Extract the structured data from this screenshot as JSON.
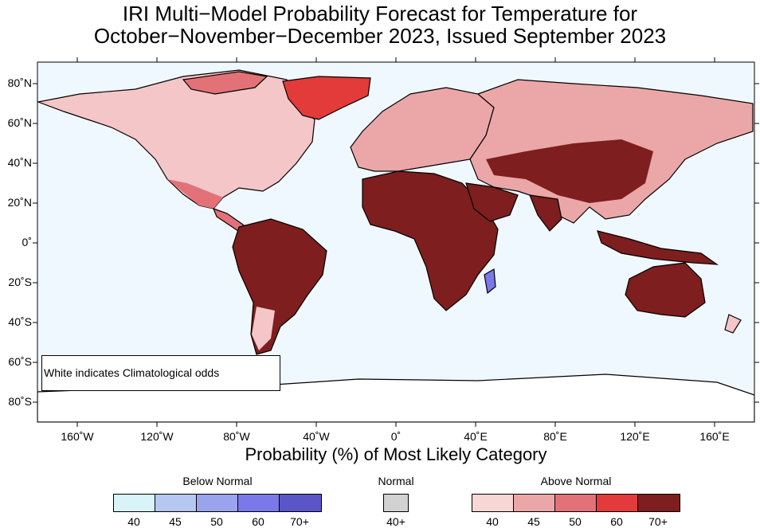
{
  "title_line1": "IRI Multi−Model Probability Forecast for Temperature for",
  "title_line2": "October−November−December 2023, Issued September 2023",
  "note": "White indicates Climatological odds",
  "legend_title": "Probability (%) of Most Likely Category",
  "x_axis_labels": [
    "160˚W",
    "120˚W",
    "80˚W",
    "40˚W",
    "0˚",
    "40˚E",
    "80˚E",
    "120˚E",
    "160˚E"
  ],
  "y_axis_labels": [
    "80˚N",
    "60˚N",
    "40˚N",
    "20˚N",
    "0˚",
    "20˚S",
    "40˚S",
    "60˚S",
    "80˚S"
  ],
  "legend": {
    "below": {
      "label": "Below Normal",
      "ticks": [
        "40",
        "45",
        "50",
        "60",
        "70+"
      ],
      "colors": [
        "#d8f4fa",
        "#b6c8f2",
        "#9aa4ec",
        "#7b78ea",
        "#5a56c8"
      ]
    },
    "normal": {
      "label": "Normal",
      "ticks": [
        "40+"
      ],
      "colors": [
        "#d2d2d2"
      ]
    },
    "above": {
      "label": "Above Normal",
      "ticks": [
        "40",
        "45",
        "50",
        "60",
        "70+"
      ],
      "colors": [
        "#f9d6d6",
        "#eba7a8",
        "#e27278",
        "#e33a3a",
        "#7e1e1e"
      ]
    }
  },
  "map_colors": {
    "ocean": "#f0f8ff",
    "land_white": "#ffffff",
    "coast": "#000000"
  }
}
